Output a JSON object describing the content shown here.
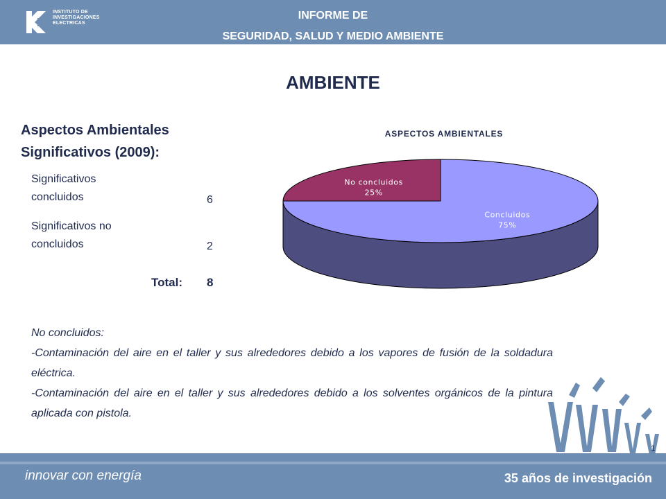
{
  "header": {
    "logo_lines": [
      "INSTITUTO DE",
      "INVESTIGACIONES",
      "ELECTRICAS"
    ],
    "title_line1": "INFORME DE",
    "title_line2": "SEGURIDAD, SALUD Y MEDIO AMBIENTE"
  },
  "page_title": "AMBIENTE",
  "summary": {
    "heading_line1": "Aspectos Ambientales",
    "heading_line2": "Significativos (2009):",
    "rows": [
      {
        "label_line1": "Significativos",
        "label_line2": "concluidos",
        "value": "6"
      },
      {
        "label_line1": "Significativos no",
        "label_line2": "concluidos",
        "value": "2"
      }
    ],
    "total_label": "Total:",
    "total_value": "8"
  },
  "chart_data": {
    "type": "pie",
    "title": "ASPECTOS AMBIENTALES",
    "categories": [
      "Concluidos",
      "No concluidos"
    ],
    "values": [
      75,
      25
    ],
    "labels": [
      "75%",
      "25%"
    ],
    "colors": [
      "#9999ff",
      "#993366"
    ],
    "side_colors": [
      "#4d4d80",
      "#4d1a33"
    ],
    "legend": "none"
  },
  "notes": {
    "heading": "No concluidos:",
    "items": [
      "-Contaminación del aire en el taller y sus alrededores debido a los vapores de fusión de la soldadura eléctrica.",
      "-Contaminación del aire en el taller y sus alrededores debido a los solventes orgánicos de la pintura aplicada con pistola."
    ]
  },
  "page_number": "1",
  "footer": {
    "left": "innovar con energía",
    "right": "35 años de investigación"
  },
  "colors": {
    "header_bg": "#6d8db3",
    "text_dark": "#1f2a4d",
    "deco": "#6d8db3"
  }
}
